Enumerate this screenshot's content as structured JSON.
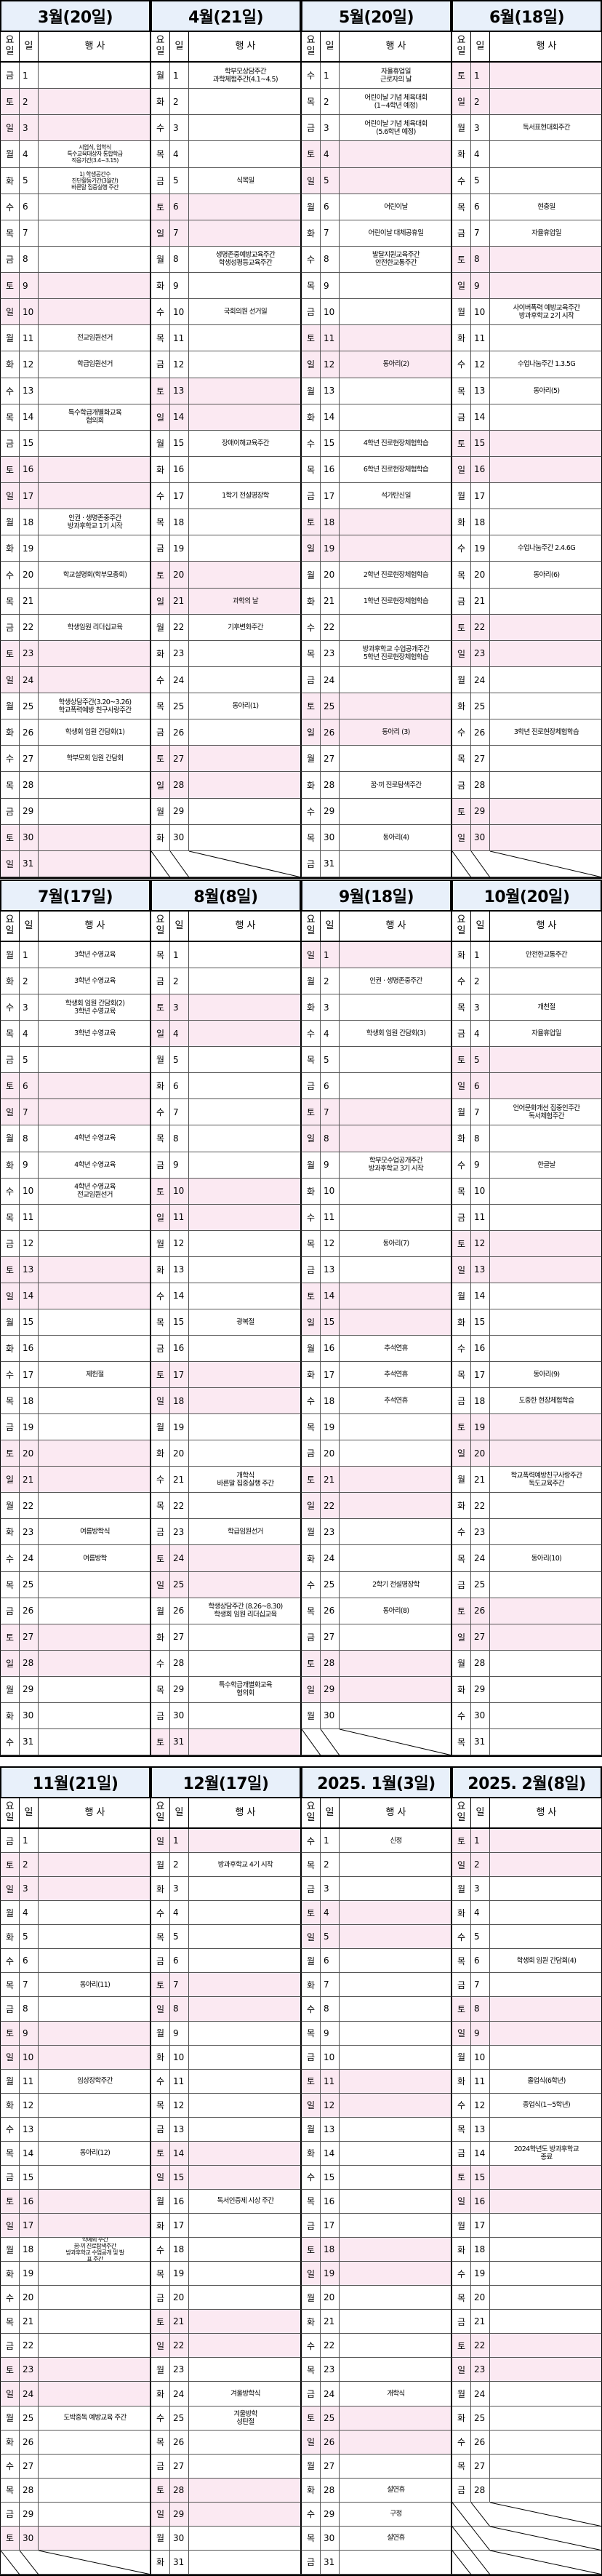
{
  "columnHeaders": {
    "dow": "요\n일",
    "day": "일",
    "event": "행   사"
  },
  "sections": [
    {
      "months": [
        {
          "title": "3월(20일)",
          "first": 5,
          "days": 31,
          "events": {
            "4": "시업식, 입학식\n특수교육대상자 통합학급\n적응기간(3.4~3.15)",
            "5": "1) 학생공간수\n진단활동기간(3월간)\n바른말 집중실행 주간",
            "11": "전교임원선거",
            "12": "학급임원선거",
            "14": "특수학급개별화교육\n협의회",
            "18": "인권 · 생명존중주간\n방과후학교 1기 시작",
            "20": "학교설명회(학부모총회)",
            "22": "학생임원 리더십교육",
            "25": "학생상담주간(3.20~3.26)\n학교폭력예방 친구사랑주간",
            "26": "학생회 임원 간담회(1)",
            "27": "학부모회 임원 간담회"
          }
        },
        {
          "title": "4월(21일)",
          "first": 1,
          "days": 30,
          "events": {
            "1": "학부모상담주간\n과학체험주간(4.1~4.5)",
            "5": "식목일",
            "8": "생명존중예방교육주간\n학생성평등교육주간",
            "10": "국회의원 선거일",
            "15": "장애이해교육주간",
            "17": "1학기 전설명장학",
            "21": "과학의 날",
            "22": "기후변화주간",
            "25": "동아리(1)"
          }
        },
        {
          "title": "5월(20일)",
          "first": 3,
          "days": 31,
          "events": {
            "1": "자율휴업일\n근로자의 날",
            "2": "어린이날 기념 체육대회\n(1~4학년 예정)",
            "3": "어린이날 기념 체육대회\n(5.6학년 예정)",
            "6": "어린이날",
            "7": "어린이날 대체공휴일",
            "8": "발달지원교육주간\n안전한교통주간",
            "12": "동아리(2)",
            "15": "4학년 진로현장체험학습",
            "16": "6학년 진로현장체험학습",
            "17": "석가탄신일",
            "20": "2학년 진로현장체험학습",
            "21": "1학년 진로현장체험학습",
            "23": "방과후학교 수업공개주간\n5학년 진로현장체험학습",
            "26": "동아리 (3)",
            "28": "꿈·끼 진로탐색주간",
            "30": "동아리(4)"
          }
        },
        {
          "title": "6월(18일)",
          "first": 6,
          "days": 30,
          "events": {
            "3": "독서표현대회주간",
            "6": "현충일",
            "7": "자율휴업일",
            "10": "사이버폭력 예방교육주간\n방과후학교 2기 시작",
            "12": "수업나눔주간 1.3.5G",
            "13": "동아리(5)",
            "19": "수업나눔주간 2.4.6G",
            "20": "동아리(6)",
            "26": "3학년 진로현장체험학습"
          }
        }
      ]
    },
    {
      "months": [
        {
          "title": "7월(17일)",
          "first": 1,
          "days": 31,
          "events": {
            "1": "3학년 수영교육",
            "2": "3학년 수영교육",
            "3": "학생회 임원 간담회(2)\n3학년 수영교육",
            "4": "3학년 수영교육",
            "8": "4학년 수영교육",
            "9": "4학년 수영교육",
            "10": "4학년 수영교육\n전교임원선거",
            "17": "제헌절",
            "23": "여름방학식",
            "24": "여름방학"
          }
        },
        {
          "title": "8월(8일)",
          "first": 4,
          "days": 31,
          "events": {
            "15": "광복절",
            "21": "개학식\n바른말 집중실행 주간",
            "23": "학급임원선거",
            "26": "학생상담주간 (8.26~8.30)\n학생회 임원 리더십교육",
            "29": "특수학급개별화교육\n협의회"
          }
        },
        {
          "title": "9월(18일)",
          "first": 0,
          "days": 30,
          "events": {
            "2": "인권 · 생명존중주간",
            "4": "학생회 임원 간담회(3)",
            "9": "학부모수업공개주간\n방과후학교 3기 시작",
            "12": "동아리(7)",
            "16": "추석연휴",
            "17": "추석연휴",
            "18": "추석연휴",
            "25": "2학기 전설명장학",
            "26": "동아리(8)"
          }
        },
        {
          "title": "10월(20일)",
          "first": 2,
          "days": 31,
          "events": {
            "1": "안전한교통주간",
            "3": "개천절",
            "4": "자율휴업일",
            "7": "언어문화개선 집중인주간\n독서체험주간",
            "9": "한글날",
            "17": "동아리(9)",
            "18": "도중한 현장체험학습",
            "21": "학교폭력예방친구사랑주간\n독도교육주간",
            "24": "동아리(10)"
          }
        }
      ]
    },
    {
      "months": [
        {
          "title": "11월(21일)",
          "first": 5,
          "days": 30,
          "events": {
            "7": "동아리(11)",
            "11": "임상장학주간",
            "14": "동아리(12)",
            "18": "학예회 주간\n꿈·끼 진로탐색주간\n방과후학교 수업공개 및 발\n표 주간",
            "25": "도박중독 예방교육 주간"
          }
        },
        {
          "title": "12월(17일)",
          "first": 0,
          "days": 31,
          "events": {
            "2": "방과후학교 4기 시작",
            "16": "독서인증제 시상 주간",
            "24": "겨울방학식",
            "25": "겨울방학\n성탄절"
          }
        },
        {
          "title": "2025. 1월(3일)",
          "first": 3,
          "days": 31,
          "events": {
            "1": "신정",
            "24": "개학식",
            "28": "설연휴",
            "29": "구정",
            "30": "설연휴"
          }
        },
        {
          "title": "2025. 2월(8일)",
          "first": 6,
          "days": 28,
          "events": {
            "6": "학생회 임원 간담회(4)",
            "11": "졸업식(6학년)",
            "12": "종업식(1~5학년)",
            "14": "2024학년도 방과후학교\n종료"
          }
        }
      ]
    }
  ],
  "dowNames": [
    "일",
    "월",
    "화",
    "수",
    "목",
    "금",
    "토"
  ]
}
